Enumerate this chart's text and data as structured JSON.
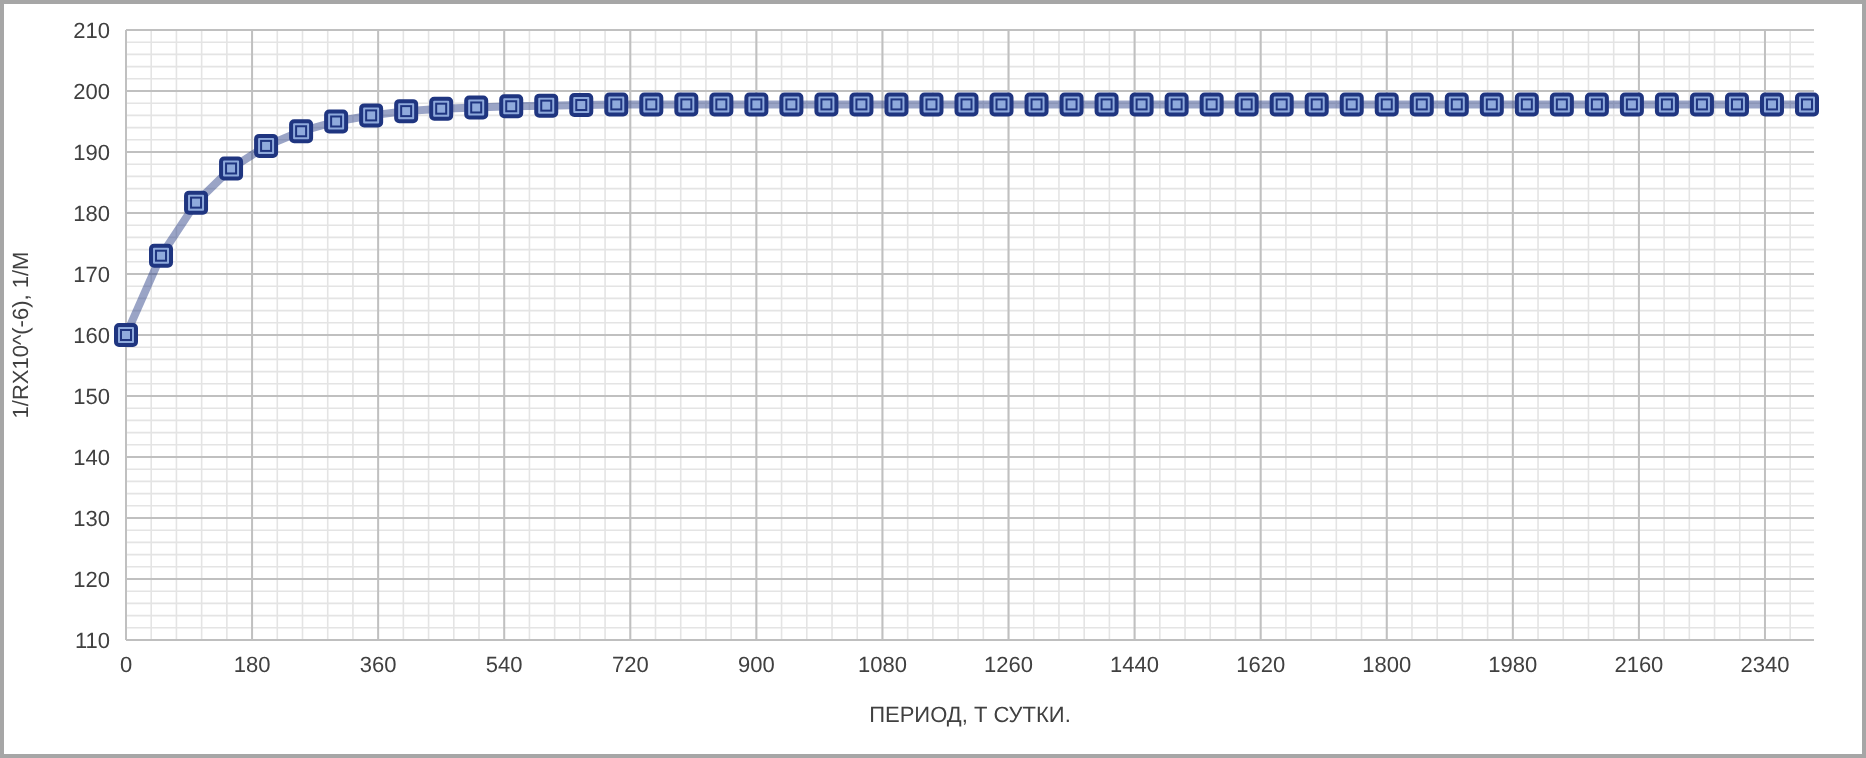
{
  "chart_data": {
    "type": "line",
    "xlabel": "ПЕРИОД,  Т СУТКИ.",
    "ylabel": "1/RX10^(-6), 1/M",
    "x": [
      0,
      50,
      100,
      150,
      200,
      250,
      300,
      350,
      400,
      450,
      500,
      550,
      600,
      650,
      700,
      750,
      800,
      850,
      900,
      950,
      1000,
      1050,
      1100,
      1150,
      1200,
      1250,
      1300,
      1350,
      1400,
      1450,
      1500,
      1550,
      1600,
      1650,
      1700,
      1750,
      1800,
      1850,
      1900,
      1950,
      2000,
      2050,
      2100,
      2150,
      2200,
      2250,
      2300,
      2350,
      2400
    ],
    "series": [
      {
        "color": "#1f3580",
        "values": [
          160,
          173,
          181.7,
          187.3,
          191,
          193.4,
          195,
          196,
          196.7,
          197.1,
          197.3,
          197.5,
          197.6,
          197.7,
          197.8,
          197.8,
          197.8,
          197.8,
          197.8,
          197.8,
          197.8,
          197.8,
          197.8,
          197.8,
          197.8,
          197.8,
          197.8,
          197.8,
          197.8,
          197.8,
          197.8,
          197.8,
          197.8,
          197.8,
          197.8,
          197.8,
          197.8,
          197.8,
          197.8,
          197.8,
          197.8,
          197.8,
          197.8,
          197.8,
          197.8,
          197.8,
          197.8,
          197.8,
          197.8
        ]
      }
    ],
    "xlim": [
      0,
      2410
    ],
    "xticks": [
      0,
      180,
      360,
      540,
      720,
      900,
      1080,
      1260,
      1440,
      1620,
      1800,
      1980,
      2160,
      2340
    ],
    "ylim": [
      110,
      210
    ],
    "yticks": [
      110,
      120,
      130,
      140,
      150,
      160,
      170,
      180,
      190,
      200,
      210
    ],
    "grid": true,
    "marker": "square",
    "line_style": "solid"
  }
}
